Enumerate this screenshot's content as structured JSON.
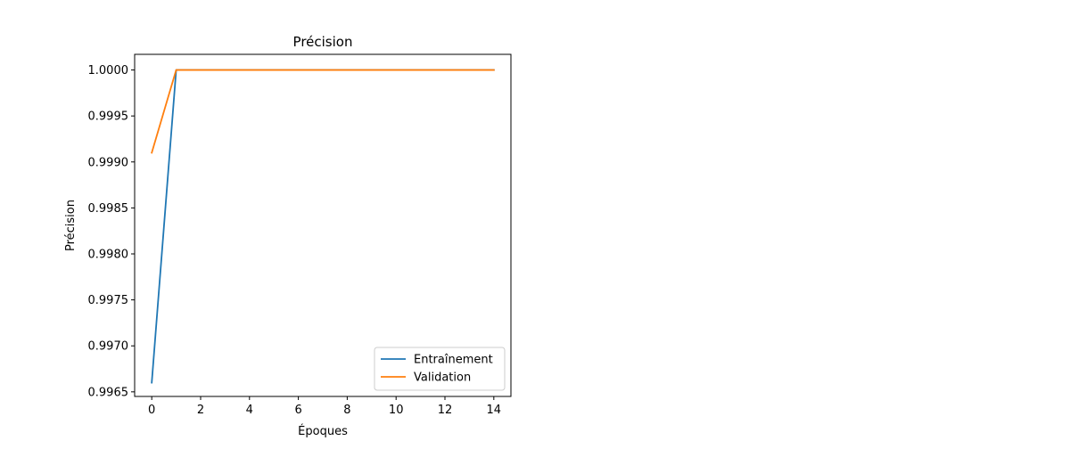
{
  "chart_data": {
    "type": "line",
    "title": "Précision",
    "xlabel": "Époques",
    "ylabel": "Précision",
    "xlim": [
      -0.7,
      14.7
    ],
    "ylim": [
      0.99645,
      1.00017
    ],
    "x_ticks": [
      0,
      2,
      4,
      6,
      8,
      10,
      12,
      14
    ],
    "y_ticks": [
      0.9965,
      0.997,
      0.9975,
      0.998,
      0.9985,
      0.999,
      0.9995,
      1.0
    ],
    "y_tick_decimals": 4,
    "grid": false,
    "legend_position": "lower right",
    "x": [
      0,
      1,
      2,
      3,
      4,
      5,
      6,
      7,
      8,
      9,
      10,
      11,
      12,
      13,
      14
    ],
    "series": [
      {
        "name": "Entraînement",
        "color": "#1f77b4",
        "values": [
          0.9966,
          1.0,
          1.0,
          1.0,
          1.0,
          1.0,
          1.0,
          1.0,
          1.0,
          1.0,
          1.0,
          1.0,
          1.0,
          1.0,
          1.0
        ]
      },
      {
        "name": "Validation",
        "color": "#ff7f0e",
        "values": [
          0.9991,
          1.0,
          1.0,
          1.0,
          1.0,
          1.0,
          1.0,
          1.0,
          1.0,
          1.0,
          1.0,
          1.0,
          1.0,
          1.0,
          1.0
        ]
      }
    ]
  }
}
